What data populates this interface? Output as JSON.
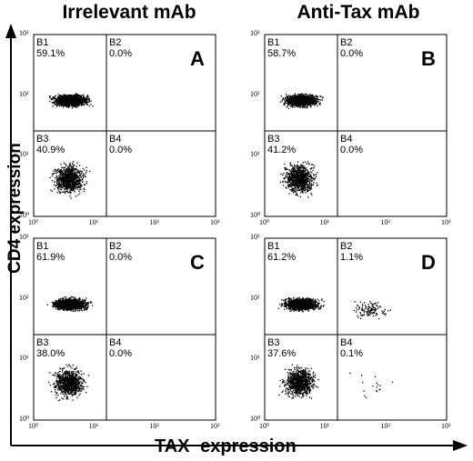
{
  "column_titles": [
    "Irrelevant mAb",
    "Anti-Tax mAb"
  ],
  "y_axis_title": "CD4 expression",
  "x_axis_title": "TAX expression",
  "tick_labels": {
    "x": [
      "10⁰",
      "10¹",
      "10²",
      "10³"
    ],
    "y": [
      "10⁰",
      "10¹",
      "10²",
      "10³"
    ]
  },
  "chart_data": [
    {
      "type": "scatter",
      "panel": "A",
      "column": "Irrelevant mAb",
      "xscale": "log",
      "yscale": "log",
      "xlim": [
        1,
        1000
      ],
      "ylim": [
        1,
        1000
      ],
      "quadrants": {
        "B1": "59.1%",
        "B2": "0.0%",
        "B3": "40.9%",
        "B4": "0.0%"
      }
    },
    {
      "type": "scatter",
      "panel": "B",
      "column": "Anti-Tax mAb",
      "xscale": "log",
      "yscale": "log",
      "xlim": [
        1,
        1000
      ],
      "ylim": [
        1,
        1000
      ],
      "quadrants": {
        "B1": "58.7%",
        "B2": "0.0%",
        "B3": "41.2%",
        "B4": "0.0%"
      }
    },
    {
      "type": "scatter",
      "panel": "C",
      "column": "Irrelevant mAb",
      "xscale": "log",
      "yscale": "log",
      "xlim": [
        1,
        1000
      ],
      "ylim": [
        1,
        1000
      ],
      "quadrants": {
        "B1": "61.9%",
        "B2": "0.0%",
        "B3": "38.0%",
        "B4": "0.0%"
      }
    },
    {
      "type": "scatter",
      "panel": "D",
      "column": "Anti-Tax mAb",
      "xscale": "log",
      "yscale": "log",
      "xlim": [
        1,
        1000
      ],
      "ylim": [
        1,
        1000
      ],
      "quadrants": {
        "B1": "61.2%",
        "B2": "1.1%",
        "B3": "37.6%",
        "B4": "0.1%"
      }
    }
  ]
}
